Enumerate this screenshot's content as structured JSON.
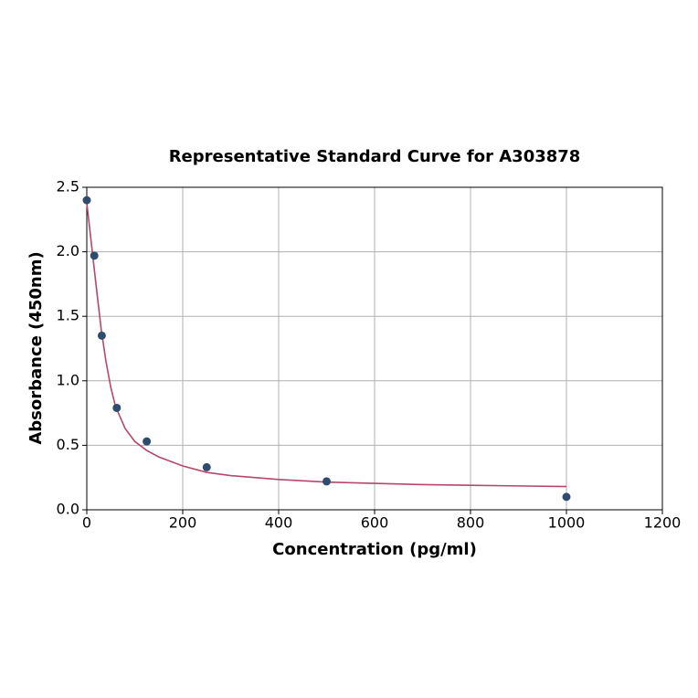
{
  "chart_data": {
    "type": "scatter",
    "title": "Representative Standard Curve for A303878",
    "x_label": "Concentration (pg/ml)",
    "y_label": "Absorbance (450nm)",
    "xlim": [
      0,
      1200
    ],
    "ylim": [
      0,
      2.5
    ],
    "xticks": [
      0,
      200,
      400,
      600,
      800,
      1000,
      1200
    ],
    "yticks": [
      {
        "value": 0,
        "label": "0.0"
      },
      {
        "value": 0.5,
        "label": "0.5"
      },
      {
        "value": 1,
        "label": "1.0"
      },
      {
        "value": 1.5,
        "label": "1.5"
      },
      {
        "value": 2,
        "label": "2.0"
      },
      {
        "value": 2.5,
        "label": "2.5"
      }
    ],
    "grid": true,
    "series": [
      {
        "color": "#2f4b6e",
        "x": [
          0,
          15.625,
          31.25,
          62.5,
          125,
          250,
          500,
          1000
        ],
        "values": [
          2.4,
          1.97,
          1.35,
          0.79,
          0.53,
          0.33,
          0.22,
          0.1
        ]
      }
    ],
    "curve": {
      "color": "#b5476b",
      "x": [
        0,
        10,
        20,
        30,
        40,
        50,
        60,
        80,
        100,
        125,
        150,
        200,
        250,
        300,
        400,
        500,
        600,
        700,
        800,
        900,
        1000
      ],
      "values": [
        2.38,
        2.05,
        1.72,
        1.4,
        1.15,
        0.95,
        0.8,
        0.63,
        0.53,
        0.46,
        0.41,
        0.34,
        0.29,
        0.265,
        0.235,
        0.215,
        0.205,
        0.195,
        0.19,
        0.185,
        0.18
      ]
    }
  }
}
